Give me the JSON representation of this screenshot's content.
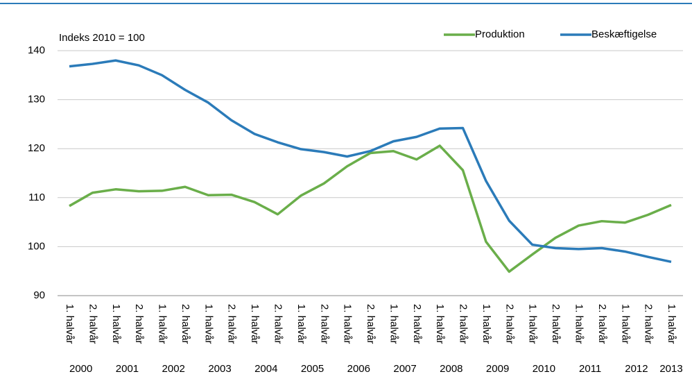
{
  "chart_data": {
    "type": "line",
    "title": "Indeks 2010 = 100",
    "categories": [
      "1. halvår",
      "2. halvår",
      "1. halvår",
      "2. halvår",
      "1. halvår",
      "2. halvår",
      "1. halvår",
      "2. halvår",
      "1. halvår",
      "2. halvår",
      "1. halvår",
      "2. halvår",
      "1. halvår",
      "2. halvår",
      "1. halvår",
      "2. halvår",
      "1. halvår",
      "2. halvår",
      "1. halvår",
      "2. halvår",
      "1. halvår",
      "2. halvår",
      "1. halvår",
      "2. halvår",
      "1. halvår",
      "2. halvår",
      "1. halvår"
    ],
    "year_labels": [
      "2000",
      "2001",
      "2002",
      "2003",
      "2004",
      "2005",
      "2006",
      "2007",
      "2008",
      "2009",
      "2010",
      "2011",
      "2012",
      "2013"
    ],
    "series": [
      {
        "name": "Produktion",
        "color": "#6aae4a",
        "values": [
          108.3,
          111,
          111.7,
          111.3,
          111.4,
          112.2,
          110.5,
          110.6,
          109.1,
          106.6,
          110.4,
          112.9,
          116.4,
          119.1,
          119.5,
          117.8,
          120.6,
          115.6,
          101,
          94.9,
          98.4,
          101.8,
          104.3,
          105.2,
          104.9,
          106.5,
          108.5
        ]
      },
      {
        "name": "Beskæftigelse",
        "color": "#2b7bb9",
        "values": [
          136.8,
          137.3,
          138,
          137,
          135,
          132,
          129.4,
          125.8,
          123,
          121.3,
          119.9,
          119.3,
          118.4,
          119.5,
          121.5,
          122.4,
          124.1,
          124.2,
          113.4,
          105.3,
          100.4,
          99.7,
          99.5,
          99.7,
          99,
          97.9,
          96.9
        ]
      }
    ],
    "ylim": [
      90,
      140
    ],
    "yticks": [
      90,
      100,
      110,
      120,
      130,
      140
    ],
    "grid": true,
    "legend": "top-right"
  }
}
